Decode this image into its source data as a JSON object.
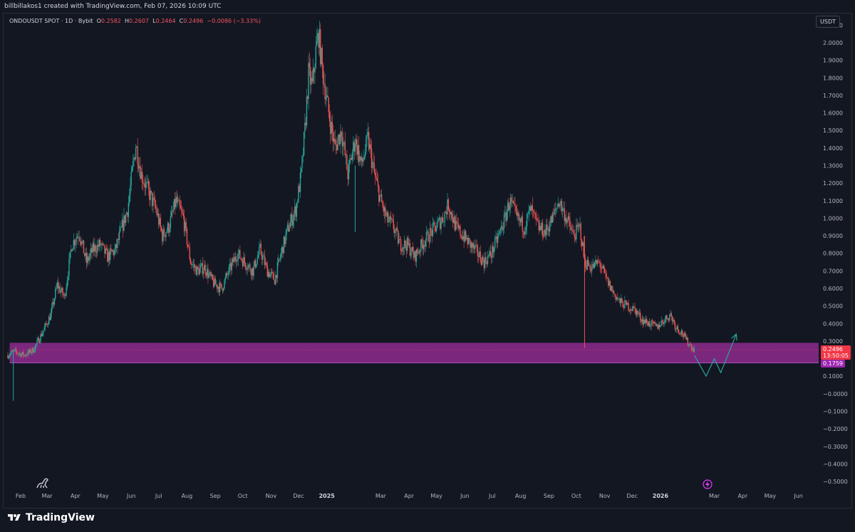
{
  "header": {
    "credit": "billbillakos1 created with TradingView.com, Feb 07, 2026 10:09 UTC"
  },
  "legend": {
    "symbol": "ONDOUSDT SPOT · 1D · Bybit",
    "o_label": "O",
    "o_value": "0.2582",
    "h_label": "H",
    "h_value": "0.2607",
    "l_label": "L",
    "l_value": "0.2464",
    "c_label": "C",
    "c_value": "0.2496",
    "change": "−0.0086 (−3.33%)"
  },
  "currency": "USDT",
  "price_tags": {
    "last_price": "0.2496",
    "countdown": "13:50:05",
    "zone_price": "0.1759"
  },
  "footer": {
    "brand": "TradingView"
  },
  "colors": {
    "up": "#26a69a",
    "down": "#ef5350",
    "zone": "#8e2a8e",
    "last_tag": "#f23645",
    "zone_tag": "#9c27b0",
    "projection": "#26a69a"
  },
  "chart_data": {
    "type": "candlestick",
    "title": "",
    "xlabel": "",
    "ylabel": "",
    "ylim": [
      -0.52,
      2.15
    ],
    "y_ticks": [
      "2.1000",
      "2.0000",
      "1.9000",
      "1.8000",
      "1.7000",
      "1.6000",
      "1.5000",
      "1.4000",
      "1.3000",
      "1.2000",
      "1.1000",
      "1.0000",
      "0.9000",
      "0.8000",
      "0.7000",
      "0.6000",
      "0.5000",
      "0.4000",
      "0.3000",
      "0.1000",
      "−0.0000",
      "−0.1000",
      "−0.2000",
      "−0.3000",
      "−0.4000",
      "−0.5000"
    ],
    "y_tick_values": [
      2.1,
      2.0,
      1.9,
      1.8,
      1.7,
      1.6,
      1.5,
      1.4,
      1.3,
      1.2,
      1.1,
      1.0,
      0.9,
      0.8,
      0.7,
      0.6,
      0.5,
      0.4,
      0.3,
      0.1,
      0.0,
      -0.1,
      -0.2,
      -0.3,
      -0.4,
      -0.5
    ],
    "x_ticks": [
      {
        "label": "Feb",
        "date": "2024-02-01"
      },
      {
        "label": "Mar",
        "date": "2024-03-01"
      },
      {
        "label": "Apr",
        "date": "2024-04-01"
      },
      {
        "label": "May",
        "date": "2024-05-01"
      },
      {
        "label": "Jun",
        "date": "2024-06-01"
      },
      {
        "label": "Jul",
        "date": "2024-07-01"
      },
      {
        "label": "Aug",
        "date": "2024-08-01"
      },
      {
        "label": "Sep",
        "date": "2024-09-01"
      },
      {
        "label": "Oct",
        "date": "2024-10-01"
      },
      {
        "label": "Nov",
        "date": "2024-11-01"
      },
      {
        "label": "Dec",
        "date": "2024-12-01"
      },
      {
        "label": "2025",
        "date": "2025-01-01",
        "bold": true
      },
      {
        "label": "Mar",
        "date": "2025-03-01"
      },
      {
        "label": "Apr",
        "date": "2025-04-01"
      },
      {
        "label": "May",
        "date": "2025-05-01"
      },
      {
        "label": "Jun",
        "date": "2025-06-01"
      },
      {
        "label": "Jul",
        "date": "2025-07-01"
      },
      {
        "label": "Aug",
        "date": "2025-08-01"
      },
      {
        "label": "Sep",
        "date": "2025-09-01"
      },
      {
        "label": "Oct",
        "date": "2025-10-01"
      },
      {
        "label": "Nov",
        "date": "2025-11-01"
      },
      {
        "label": "Dec",
        "date": "2025-12-01"
      },
      {
        "label": "2026",
        "date": "2026-01-01",
        "bold": true
      },
      {
        "label": "Mar",
        "date": "2026-03-01"
      },
      {
        "label": "Apr",
        "date": "2026-04-01"
      },
      {
        "label": "May",
        "date": "2026-05-01"
      },
      {
        "label": "Jun",
        "date": "2026-06-01"
      }
    ],
    "x_range": [
      "2024-01-18",
      "2026-06-20"
    ],
    "price_path": [
      [
        "2024-01-18",
        0.22
      ],
      [
        "2024-01-25",
        0.24
      ],
      [
        "2024-02-05",
        0.22
      ],
      [
        "2024-02-15",
        0.25
      ],
      [
        "2024-02-25",
        0.35
      ],
      [
        "2024-03-05",
        0.45
      ],
      [
        "2024-03-12",
        0.62
      ],
      [
        "2024-03-20",
        0.55
      ],
      [
        "2024-03-28",
        0.85
      ],
      [
        "2024-04-05",
        0.92
      ],
      [
        "2024-04-13",
        0.75
      ],
      [
        "2024-04-20",
        0.82
      ],
      [
        "2024-04-28",
        0.85
      ],
      [
        "2024-05-06",
        0.78
      ],
      [
        "2024-05-15",
        0.82
      ],
      [
        "2024-05-22",
        0.95
      ],
      [
        "2024-05-28",
        1.05
      ],
      [
        "2024-06-03",
        1.3
      ],
      [
        "2024-06-06",
        1.42
      ],
      [
        "2024-06-12",
        1.25
      ],
      [
        "2024-06-20",
        1.15
      ],
      [
        "2024-06-28",
        1.05
      ],
      [
        "2024-07-05",
        0.9
      ],
      [
        "2024-07-12",
        0.95
      ],
      [
        "2024-07-20",
        1.1
      ],
      [
        "2024-07-28",
        1.0
      ],
      [
        "2024-08-05",
        0.75
      ],
      [
        "2024-08-12",
        0.7
      ],
      [
        "2024-08-20",
        0.72
      ],
      [
        "2024-08-30",
        0.63
      ],
      [
        "2024-09-08",
        0.6
      ],
      [
        "2024-09-16",
        0.7
      ],
      [
        "2024-09-25",
        0.8
      ],
      [
        "2024-10-03",
        0.75
      ],
      [
        "2024-10-12",
        0.7
      ],
      [
        "2024-10-20",
        0.82
      ],
      [
        "2024-10-28",
        0.7
      ],
      [
        "2024-11-05",
        0.65
      ],
      [
        "2024-11-12",
        0.8
      ],
      [
        "2024-11-20",
        0.95
      ],
      [
        "2024-11-28",
        1.05
      ],
      [
        "2024-12-04",
        1.25
      ],
      [
        "2024-12-08",
        1.5
      ],
      [
        "2024-12-12",
        1.82
      ],
      [
        "2024-12-16",
        1.75
      ],
      [
        "2024-12-20",
        1.95
      ],
      [
        "2024-12-23",
        2.05
      ],
      [
        "2024-12-27",
        1.85
      ],
      [
        "2025-01-03",
        1.6
      ],
      [
        "2025-01-10",
        1.4
      ],
      [
        "2025-01-17",
        1.5
      ],
      [
        "2025-01-24",
        1.25
      ],
      [
        "2025-02-01",
        1.45
      ],
      [
        "2025-02-08",
        1.3
      ],
      [
        "2025-02-15",
        1.45
      ],
      [
        "2025-02-22",
        1.25
      ],
      [
        "2025-03-01",
        1.1
      ],
      [
        "2025-03-07",
        1.0
      ],
      [
        "2025-03-15",
        0.95
      ],
      [
        "2025-03-22",
        0.85
      ],
      [
        "2025-03-30",
        0.85
      ],
      [
        "2025-04-07",
        0.78
      ],
      [
        "2025-04-15",
        0.85
      ],
      [
        "2025-04-22",
        0.9
      ],
      [
        "2025-04-30",
        0.95
      ],
      [
        "2025-05-08",
        1.0
      ],
      [
        "2025-05-14",
        1.08
      ],
      [
        "2025-05-22",
        0.95
      ],
      [
        "2025-05-30",
        0.9
      ],
      [
        "2025-06-07",
        0.85
      ],
      [
        "2025-06-15",
        0.8
      ],
      [
        "2025-06-22",
        0.75
      ],
      [
        "2025-06-30",
        0.8
      ],
      [
        "2025-07-08",
        0.9
      ],
      [
        "2025-07-15",
        1.0
      ],
      [
        "2025-07-20",
        1.1
      ],
      [
        "2025-07-28",
        1.0
      ],
      [
        "2025-08-05",
        0.95
      ],
      [
        "2025-08-12",
        1.05
      ],
      [
        "2025-08-20",
        0.95
      ],
      [
        "2025-08-28",
        0.92
      ],
      [
        "2025-09-05",
        1.0
      ],
      [
        "2025-09-12",
        1.1
      ],
      [
        "2025-09-20",
        1.0
      ],
      [
        "2025-09-28",
        0.9
      ],
      [
        "2025-10-05",
        0.95
      ],
      [
        "2025-10-10",
        0.75
      ],
      [
        "2025-10-18",
        0.72
      ],
      [
        "2025-10-26",
        0.75
      ],
      [
        "2025-11-03",
        0.65
      ],
      [
        "2025-11-10",
        0.58
      ],
      [
        "2025-11-18",
        0.52
      ],
      [
        "2025-11-26",
        0.5
      ],
      [
        "2025-12-04",
        0.48
      ],
      [
        "2025-12-12",
        0.42
      ],
      [
        "2025-12-20",
        0.4
      ],
      [
        "2025-12-28",
        0.38
      ],
      [
        "2026-01-05",
        0.42
      ],
      [
        "2026-01-12",
        0.45
      ],
      [
        "2026-01-18",
        0.38
      ],
      [
        "2026-01-24",
        0.35
      ],
      [
        "2026-01-30",
        0.3
      ],
      [
        "2026-02-07",
        0.2496
      ]
    ],
    "support_zone": {
      "low": 0.1759,
      "high": 0.29
    },
    "projection": [
      [
        "2026-02-07",
        0.22
      ],
      [
        "2026-02-20",
        0.1
      ],
      [
        "2026-03-01",
        0.2
      ],
      [
        "2026-03-08",
        0.12
      ],
      [
        "2026-03-25",
        0.34
      ]
    ]
  }
}
